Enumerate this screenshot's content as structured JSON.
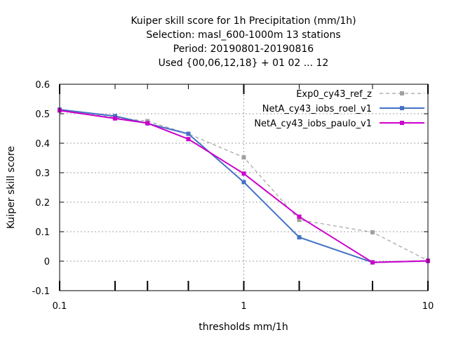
{
  "chart_data": {
    "type": "line",
    "title_lines": [
      "Kuiper skill score  for 1h Precipitation (mm/1h)",
      "Selection: masl_600-1000m     13 stations",
      "Period: 20190801-20190816",
      "Used {00,06,12,18} + 01 02 ... 12"
    ],
    "xlabel": "thresholds mm/1h",
    "ylabel": "Kuiper skill score",
    "xscale": "log",
    "xlim": [
      0.1,
      10
    ],
    "ylim": [
      -0.1,
      0.6
    ],
    "x_ticks": [
      {
        "value": 0.1,
        "label": "0.1"
      },
      {
        "value": 1,
        "label": "1"
      },
      {
        "value": 10,
        "label": "10"
      }
    ],
    "y_ticks": [
      {
        "value": -0.1,
        "label": "-0.1"
      },
      {
        "value": 0,
        "label": "0"
      },
      {
        "value": 0.1,
        "label": "0.1"
      },
      {
        "value": 0.2,
        "label": "0.2"
      },
      {
        "value": 0.3,
        "label": "0.3"
      },
      {
        "value": 0.4,
        "label": "0.4"
      },
      {
        "value": 0.5,
        "label": "0.5"
      },
      {
        "value": 0.6,
        "label": "0.6"
      }
    ],
    "x_minor_ticks": [
      0.2,
      0.3,
      0.5,
      2,
      5
    ],
    "grid": true,
    "legend_position": "top-right",
    "series": [
      {
        "name": "Exp0_cy43_ref_z",
        "color": "#a0a0a0",
        "dashed": true,
        "x": [
          0.1,
          0.2,
          0.3,
          0.5,
          1,
          2,
          5,
          10
        ],
        "y": [
          0.512,
          0.487,
          0.475,
          0.432,
          0.352,
          0.14,
          0.098,
          0.002
        ]
      },
      {
        "name": "NetA_cy43_iobs_roel_v1",
        "color": "#4472c4",
        "dashed": false,
        "x": [
          0.1,
          0.2,
          0.3,
          0.5,
          1,
          2,
          5,
          10
        ],
        "y": [
          0.514,
          0.492,
          0.467,
          0.432,
          0.268,
          0.081,
          -0.004,
          0.001
        ]
      },
      {
        "name": "NetA_cy43_iobs_paulo_v1",
        "color": "#cc00cc",
        "dashed": false,
        "x": [
          0.1,
          0.2,
          0.3,
          0.5,
          1,
          2,
          5,
          10
        ],
        "y": [
          0.511,
          0.484,
          0.468,
          0.414,
          0.297,
          0.151,
          -0.004,
          0.001
        ]
      }
    ]
  }
}
